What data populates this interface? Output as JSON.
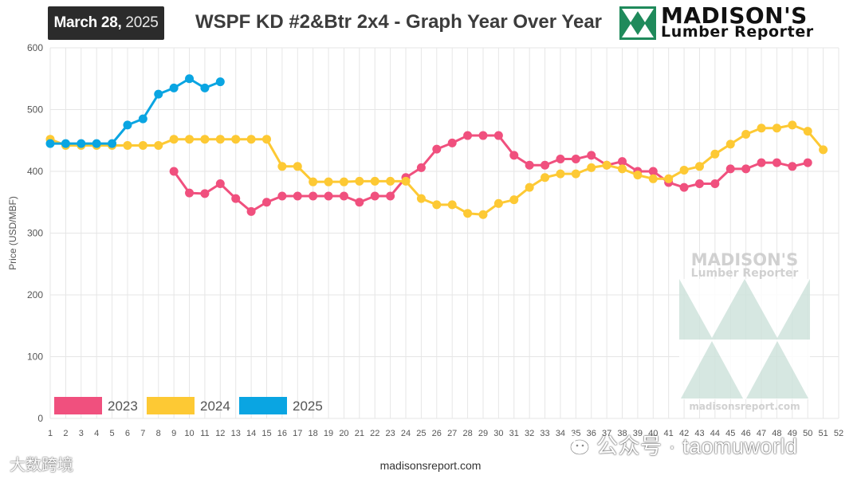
{
  "header": {
    "date_strong": "March 28,",
    "date_year": "2025",
    "title": "WSPF KD #2&Btr 2x4 - Graph Year Over Year",
    "logo_name": "MADISON'S",
    "logo_sub": "Lumber Reporter"
  },
  "footer": {
    "url": "madisonsreport.com"
  },
  "watermarks": {
    "left_text": "大数跨境",
    "right_text": "公众号 · taomuworld",
    "center_name": "MADISON'S",
    "center_sub": "Lumber Reporter",
    "center_url": "madisonsreport.com"
  },
  "colors": {
    "2023": "#f0507e",
    "2024": "#fdc934",
    "2025": "#0aa5e2",
    "grid": "#e6e6e6",
    "axis_text": "#555555",
    "logo_green": "#1f8a5b"
  },
  "chart_data": {
    "type": "line",
    "title": "WSPF KD #2&Btr 2x4 - Graph Year Over Year",
    "ylabel": "Price (USD/MBF)",
    "xlabel": "",
    "ylim": [
      0,
      600
    ],
    "yticks": [
      0,
      100,
      200,
      300,
      400,
      500,
      600
    ],
    "x": [
      1,
      2,
      3,
      4,
      5,
      6,
      7,
      8,
      9,
      10,
      11,
      12,
      13,
      14,
      15,
      16,
      17,
      18,
      19,
      20,
      21,
      22,
      23,
      24,
      25,
      26,
      27,
      28,
      29,
      30,
      31,
      32,
      33,
      34,
      35,
      36,
      37,
      38,
      39,
      40,
      41,
      42,
      43,
      44,
      45,
      46,
      47,
      48,
      49,
      50,
      51,
      52
    ],
    "grid": true,
    "legend_position": "bottom-left",
    "series": [
      {
        "name": "2023",
        "x": [
          9,
          10,
          11,
          12,
          13,
          14,
          15,
          16,
          17,
          18,
          19,
          20,
          21,
          22,
          23,
          24,
          25,
          26,
          27,
          28,
          29,
          30,
          31,
          32,
          33,
          34,
          35,
          36,
          37,
          38,
          39,
          40,
          41,
          42,
          43,
          44,
          45,
          46,
          47,
          48,
          49,
          50
        ],
        "values": [
          400,
          365,
          364,
          380,
          356,
          335,
          350,
          360,
          360,
          360,
          360,
          360,
          350,
          360,
          360,
          390,
          406,
          436,
          446,
          458,
          458,
          458,
          426,
          410,
          410,
          420,
          420,
          426,
          410,
          416,
          400,
          400,
          382,
          374,
          380,
          380,
          404,
          404,
          414,
          414,
          408,
          414
        ]
      },
      {
        "name": "2024",
        "x": [
          1,
          2,
          3,
          4,
          5,
          6,
          7,
          8,
          9,
          10,
          11,
          12,
          13,
          14,
          15,
          16,
          17,
          18,
          19,
          20,
          21,
          22,
          23,
          24,
          25,
          26,
          27,
          28,
          29,
          30,
          31,
          32,
          33,
          34,
          35,
          36,
          37,
          38,
          39,
          40,
          41,
          42,
          43,
          44,
          45,
          46,
          47,
          48,
          49,
          50,
          51
        ],
        "values": [
          452,
          442,
          442,
          442,
          442,
          442,
          442,
          442,
          452,
          452,
          452,
          452,
          452,
          452,
          452,
          408,
          408,
          383,
          383,
          383,
          384,
          384,
          384,
          384,
          356,
          346,
          346,
          332,
          330,
          348,
          354,
          374,
          390,
          396,
          396,
          406,
          410,
          404,
          394,
          388,
          388,
          402,
          408,
          428,
          444,
          460,
          470,
          470,
          475,
          465,
          435
        ]
      },
      {
        "name": "2025",
        "x": [
          1,
          2,
          3,
          4,
          5,
          6,
          7,
          8,
          9,
          10,
          11,
          12
        ],
        "values": [
          445,
          445,
          445,
          445,
          445,
          475,
          485,
          525,
          535,
          550,
          535,
          545
        ]
      }
    ]
  }
}
